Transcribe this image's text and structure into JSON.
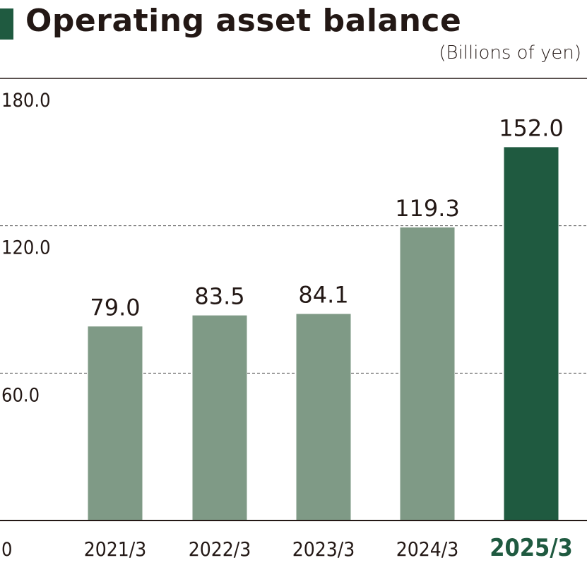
{
  "header": {
    "title": "Operating asset balance",
    "unit": "(Billions of yen)"
  },
  "colors": {
    "accent": "#1f5a40",
    "bar": "#7f9a86",
    "text": "#231815",
    "axis": "#231815",
    "grid": "#555555"
  },
  "chart_data": {
    "type": "bar",
    "categories": [
      "2021/3",
      "2022/3",
      "2023/3",
      "2024/3",
      "2025/3"
    ],
    "values": [
      79.0,
      83.5,
      84.1,
      119.3,
      152.0
    ],
    "value_labels": [
      "79.0",
      "83.5",
      "84.1",
      "119.3",
      "152.0"
    ],
    "highlight_category": "2025/3",
    "ylim": [
      0,
      180
    ],
    "y_ticks": [
      0,
      60,
      120,
      180
    ],
    "y_tick_labels": [
      "0",
      "60.0",
      "120.0",
      "180.0"
    ],
    "grid": true,
    "legend": "none"
  }
}
